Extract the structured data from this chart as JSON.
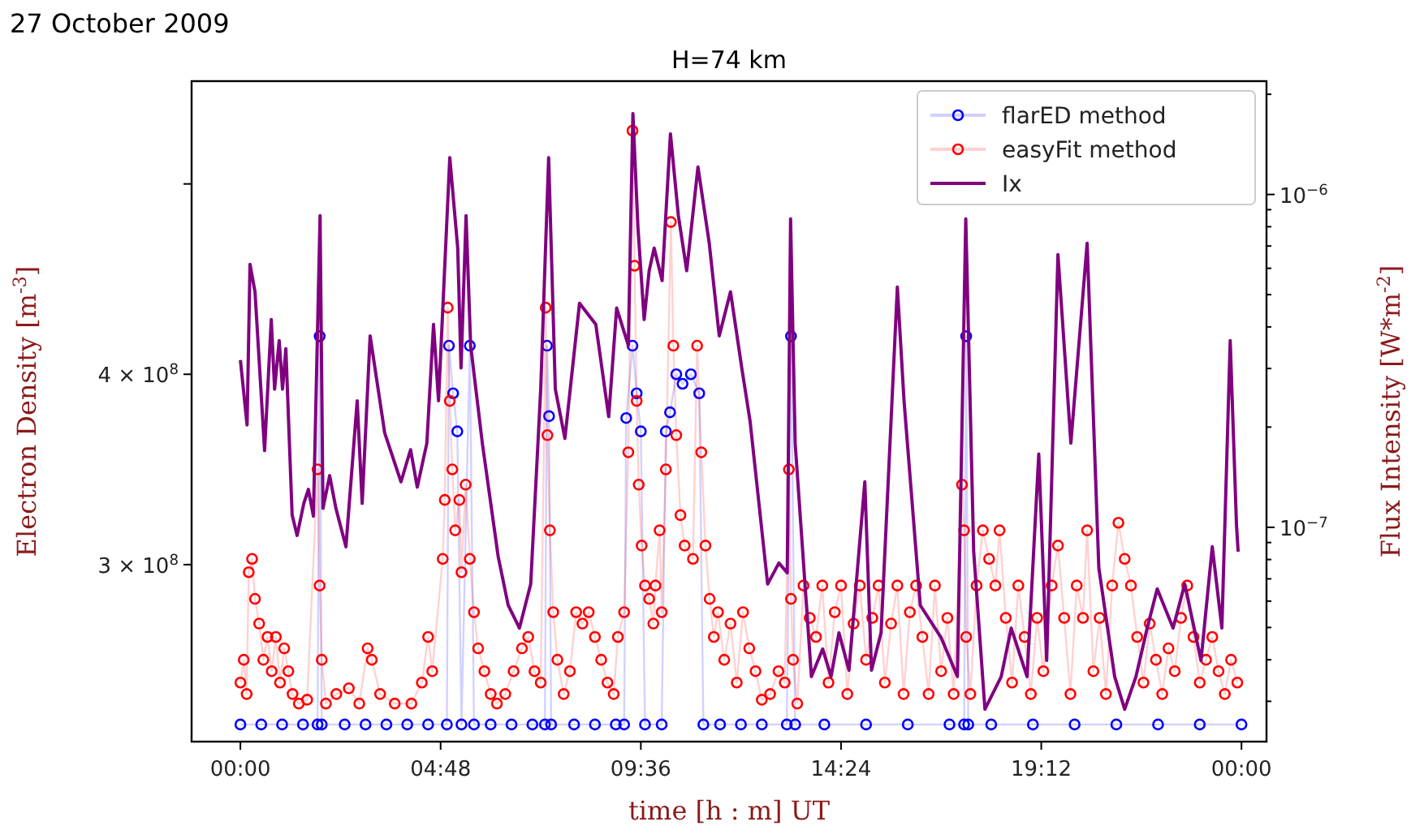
{
  "chart_data": {
    "type": "line",
    "title": "H=74 km",
    "subtitle": "27 October 2009",
    "xlabel": "time [h : m] UT",
    "ylabel": "Electron Density [m$^{-3}$]",
    "y2label": "Flux Intensity [W*m$^{-2}$]",
    "xlim": [
      -1.17,
      24.6
    ],
    "xticks": [
      {
        "value": 0,
        "label": "00:00"
      },
      {
        "value": 4.8,
        "label": "04:48"
      },
      {
        "value": 9.6,
        "label": "09:36"
      },
      {
        "value": 14.4,
        "label": "14:24"
      },
      {
        "value": 19.2,
        "label": "19:12"
      },
      {
        "value": 24,
        "label": "00:00"
      }
    ],
    "ylim": [
      207000000.0,
      554000000.0
    ],
    "yticks": [
      {
        "value": 300000000.0,
        "label": "3 × 10$^{8}$"
      },
      {
        "value": 400000000.0,
        "label": "4 × 10$^{8}$"
      },
      {
        "value": 500000000.0,
        "label": null
      }
    ],
    "y2lim": [
      2.27e-08,
      2.19e-06
    ],
    "y2ticks": [
      {
        "value": 3e-08,
        "label": null
      },
      {
        "value": 4e-08,
        "label": null
      },
      {
        "value": 5e-08,
        "label": null
      },
      {
        "value": 6e-08,
        "label": null
      },
      {
        "value": 7e-08,
        "label": null
      },
      {
        "value": 8e-08,
        "label": null
      },
      {
        "value": 9e-08,
        "label": null
      },
      {
        "value": 1e-07,
        "label": "10$^{−7}$"
      },
      {
        "value": 2e-07,
        "label": null
      },
      {
        "value": 3e-07,
        "label": null
      },
      {
        "value": 4e-07,
        "label": null
      },
      {
        "value": 5e-07,
        "label": null
      },
      {
        "value": 6e-07,
        "label": null
      },
      {
        "value": 7e-07,
        "label": null
      },
      {
        "value": 8e-07,
        "label": null
      },
      {
        "value": 9e-07,
        "label": null
      },
      {
        "value": 1e-06,
        "label": "10$^{−6}$"
      },
      {
        "value": 2e-06,
        "label": null
      }
    ],
    "log": "y2",
    "grid": false,
    "legend": "top right",
    "series": [
      {
        "name": "flarED method",
        "color": "#0000ff",
        "marker": "circle",
        "x": [
          0,
          0.5,
          1,
          1.5,
          1.85,
          1.9,
          1.95,
          2.5,
          3,
          3.5,
          4,
          4.5,
          4.95,
          5.0,
          5.1,
          5.2,
          5.3,
          5.5,
          5.6,
          6,
          6.5,
          7,
          7.3,
          7.35,
          7.4,
          7.45,
          8,
          8.5,
          9,
          9.2,
          9.25,
          9.4,
          9.5,
          9.6,
          9.7,
          10.1,
          10.2,
          10.3,
          10.45,
          10.6,
          10.8,
          11.0,
          11.1,
          11.5,
          12,
          12.5,
          13.1,
          13.2,
          13.3,
          14,
          15,
          16,
          17,
          17.35,
          17.4,
          17.45,
          18,
          19,
          20,
          21,
          22,
          23,
          24
        ],
        "values": [
          216000000.0,
          216000000.0,
          216000000.0,
          216000000.0,
          216000000.0,
          420000000.0,
          216000000.0,
          216000000.0,
          216000000.0,
          216000000.0,
          216000000.0,
          216000000.0,
          216000000.0,
          415000000.0,
          390000000.0,
          370000000.0,
          216000000.0,
          415000000.0,
          216000000.0,
          216000000.0,
          216000000.0,
          216000000.0,
          216000000.0,
          415000000.0,
          378000000.0,
          216000000.0,
          216000000.0,
          216000000.0,
          216000000.0,
          216000000.0,
          377000000.0,
          415000000.0,
          390000000.0,
          370000000.0,
          216000000.0,
          216000000.0,
          370000000.0,
          380000000.0,
          400000000.0,
          395000000.0,
          400000000.0,
          390000000.0,
          216000000.0,
          216000000.0,
          216000000.0,
          216000000.0,
          216000000.0,
          420000000.0,
          216000000.0,
          216000000.0,
          216000000.0,
          216000000.0,
          216000000.0,
          216000000.0,
          420000000.0,
          216000000.0,
          216000000.0,
          216000000.0,
          216000000.0,
          216000000.0,
          216000000.0,
          216000000.0,
          216000000.0
        ]
      },
      {
        "name": "easyFit method",
        "color": "#ff0000",
        "marker": "circle",
        "x": [
          0,
          0.08,
          0.15,
          0.2,
          0.28,
          0.35,
          0.45,
          0.55,
          0.65,
          0.75,
          0.85,
          0.95,
          1.05,
          1.15,
          1.25,
          1.4,
          1.6,
          1.85,
          1.9,
          1.95,
          2.05,
          2.3,
          2.6,
          2.85,
          3.05,
          3.15,
          3.35,
          3.7,
          4.1,
          4.35,
          4.5,
          4.6,
          4.85,
          4.9,
          4.97,
          5.02,
          5.08,
          5.15,
          5.25,
          5.3,
          5.4,
          5.5,
          5.6,
          5.7,
          5.85,
          6,
          6.15,
          6.35,
          6.55,
          6.75,
          6.9,
          7.05,
          7.2,
          7.32,
          7.36,
          7.42,
          7.5,
          7.6,
          7.75,
          7.9,
          8.05,
          8.2,
          8.35,
          8.5,
          8.65,
          8.8,
          8.95,
          9.05,
          9.2,
          9.3,
          9.4,
          9.45,
          9.5,
          9.55,
          9.62,
          9.7,
          9.8,
          9.9,
          9.95,
          10.05,
          10.1,
          10.2,
          10.32,
          10.38,
          10.45,
          10.55,
          10.65,
          10.85,
          10.95,
          11.05,
          11.15,
          11.25,
          11.35,
          11.45,
          11.6,
          11.75,
          11.9,
          12.05,
          12.2,
          12.35,
          12.5,
          12.7,
          12.9,
          13.05,
          13.15,
          13.2,
          13.25,
          13.35,
          13.5,
          13.65,
          13.8,
          13.95,
          14.1,
          14.25,
          14.4,
          14.55,
          14.7,
          14.85,
          15,
          15.15,
          15.3,
          15.45,
          15.6,
          15.75,
          15.9,
          16.05,
          16.2,
          16.35,
          16.5,
          16.65,
          16.8,
          16.95,
          17.1,
          17.3,
          17.35,
          17.4,
          17.5,
          17.65,
          17.8,
          17.95,
          18.1,
          18.2,
          18.35,
          18.5,
          18.65,
          18.8,
          18.95,
          19.1,
          19.25,
          19.45,
          19.6,
          19.75,
          19.9,
          20.05,
          20.2,
          20.3,
          20.45,
          20.6,
          20.75,
          20.9,
          21.05,
          21.2,
          21.35,
          21.5,
          21.65,
          21.8,
          21.95,
          22.1,
          22.25,
          22.4,
          22.55,
          22.7,
          22.85,
          23,
          23.15,
          23.3,
          23.45,
          23.6,
          23.75,
          23.9
        ],
        "values": [
          238000000.0,
          250000000.0,
          232000000.0,
          296000000.0,
          303000000.0,
          282000000.0,
          269000000.0,
          250000000.0,
          262000000.0,
          244000000.0,
          262000000.0,
          238000000.0,
          256000000.0,
          244000000.0,
          232000000.0,
          227000000.0,
          229000000.0,
          350000000.0,
          289000000.0,
          250000000.0,
          227000000.0,
          232000000.0,
          235000000.0,
          227000000.0,
          256000000.0,
          250000000.0,
          232000000.0,
          227000000.0,
          227000000.0,
          238000000.0,
          262000000.0,
          244000000.0,
          303000000.0,
          334000000.0,
          435000000.0,
          386000000.0,
          350000000.0,
          318000000.0,
          334000000.0,
          296000000.0,
          342000000.0,
          303000000.0,
          275000000.0,
          256000000.0,
          244000000.0,
          232000000.0,
          227000000.0,
          232000000.0,
          244000000.0,
          256000000.0,
          262000000.0,
          244000000.0,
          238000000.0,
          435000000.0,
          368000000.0,
          318000000.0,
          275000000.0,
          250000000.0,
          232000000.0,
          244000000.0,
          275000000.0,
          269000000.0,
          275000000.0,
          262000000.0,
          250000000.0,
          238000000.0,
          232000000.0,
          262000000.0,
          275000000.0,
          359000000.0,
          528000000.0,
          457000000.0,
          386000000.0,
          342000000.0,
          310000000.0,
          289000000.0,
          282000000.0,
          269000000.0,
          289000000.0,
          318000000.0,
          275000000.0,
          350000000.0,
          480000000.0,
          415000000.0,
          368000000.0,
          326000000.0,
          310000000.0,
          303000000.0,
          415000000.0,
          359000000.0,
          310000000.0,
          282000000.0,
          262000000.0,
          275000000.0,
          250000000.0,
          269000000.0,
          238000000.0,
          275000000.0,
          256000000.0,
          244000000.0,
          229000000.0,
          232000000.0,
          244000000.0,
          238000000.0,
          350000000.0,
          282000000.0,
          250000000.0,
          227000000.0,
          289000000.0,
          272000000.0,
          262000000.0,
          289000000.0,
          238000000.0,
          275000000.0,
          289000000.0,
          232000000.0,
          269000000.0,
          289000000.0,
          250000000.0,
          272000000.0,
          289000000.0,
          238000000.0,
          269000000.0,
          289000000.0,
          232000000.0,
          275000000.0,
          289000000.0,
          262000000.0,
          232000000.0,
          289000000.0,
          244000000.0,
          272000000.0,
          232000000.0,
          342000000.0,
          318000000.0,
          262000000.0,
          232000000.0,
          289000000.0,
          318000000.0,
          303000000.0,
          289000000.0,
          318000000.0,
          272000000.0,
          238000000.0,
          289000000.0,
          262000000.0,
          232000000.0,
          272000000.0,
          244000000.0,
          289000000.0,
          310000000.0,
          272000000.0,
          232000000.0,
          289000000.0,
          272000000.0,
          318000000.0,
          244000000.0,
          272000000.0,
          232000000.0,
          289000000.0,
          322000000.0,
          303000000.0,
          289000000.0,
          262000000.0,
          238000000.0,
          269000000.0,
          250000000.0,
          232000000.0,
          256000000.0,
          244000000.0,
          272000000.0,
          289000000.0,
          262000000.0,
          238000000.0,
          250000000.0,
          262000000.0,
          244000000.0,
          232000000.0,
          250000000.0,
          238000000.0
        ]
      },
      {
        "name": "Ix",
        "color": "#800080",
        "axis": "y2",
        "marker": "none",
        "x": [
          0,
          0.16,
          0.23,
          0.35,
          0.58,
          0.74,
          0.82,
          0.93,
          1.01,
          1.09,
          1.24,
          1.36,
          1.52,
          1.63,
          1.75,
          1.91,
          1.98,
          2.14,
          2.29,
          2.53,
          2.8,
          2.92,
          3.11,
          3.46,
          3.85,
          4.08,
          4.24,
          4.47,
          4.63,
          4.75,
          5.02,
          5.21,
          5.29,
          5.41,
          5.52,
          5.8,
          6.18,
          6.42,
          6.69,
          6.96,
          7.2,
          7.39,
          7.55,
          7.78,
          8.13,
          8.52,
          8.83,
          9.02,
          9.3,
          9.41,
          9.53,
          9.68,
          9.8,
          9.92,
          10.11,
          10.31,
          10.5,
          10.7,
          10.97,
          11.24,
          11.48,
          11.75,
          12.02,
          12.22,
          12.64,
          12.91,
          13.11,
          13.19,
          13.3,
          13.69,
          13.96,
          14.16,
          14.35,
          14.59,
          14.97,
          15.13,
          15.36,
          15.75,
          15.91,
          16.3,
          16.8,
          17.19,
          17.39,
          17.58,
          17.85,
          18.24,
          18.48,
          18.86,
          19.14,
          19.33,
          19.6,
          19.91,
          20.3,
          20.58,
          20.96,
          21.2,
          21.47,
          21.74,
          21.98,
          22.36,
          22.64,
          23.03,
          23.3,
          23.53,
          23.73,
          23.88,
          23.92
        ],
        "values": [
          3.18e-07,
          2.03e-07,
          6.17e-07,
          5.1e-07,
          1.7e-07,
          4.21e-07,
          2.6e-07,
          3.64e-07,
          2.6e-07,
          3.44e-07,
          1.09e-07,
          9.45e-08,
          1.18e-07,
          1.3e-07,
          1.08e-07,
          8.64e-07,
          1.14e-07,
          1.43e-07,
          1.14e-07,
          8.74e-08,
          2.4e-07,
          1.18e-07,
          3.76e-07,
          1.92e-07,
          1.37e-07,
          1.71e-07,
          1.32e-07,
          1.79e-07,
          4.07e-07,
          2.4e-07,
          1.29e-06,
          6.9e-07,
          3.01e-07,
          8.64e-07,
          3.52e-07,
          1.79e-07,
          8.17e-08,
          5.83e-08,
          4.98e-08,
          6.75e-08,
          2.6e-07,
          1.29e-06,
          2.6e-07,
          1.85e-07,
          4.71e-07,
          4.07e-07,
          2.15e-07,
          4.56e-07,
          3.52e-07,
          1.75e-06,
          7.99e-07,
          4.21e-07,
          5.9e-07,
          6.9e-07,
          5.51e-07,
          1.52e-06,
          8.64e-07,
          5.9e-07,
          1.21e-06,
          7.14e-07,
          3.76e-07,
          5.1e-07,
          3.01e-07,
          2.08e-07,
          6.75e-08,
          7.81e-08,
          7.3e-08,
          8.45e-07,
          1.79e-07,
          3.56e-08,
          4.31e-08,
          3.56e-08,
          4.82e-08,
          3.72e-08,
          1.37e-07,
          3.72e-08,
          4.82e-08,
          5.27e-07,
          2.4e-07,
          5.83e-08,
          4.66e-08,
          3.56e-08,
          8.45e-07,
          8.45e-08,
          2.84e-08,
          3.56e-08,
          4.98e-08,
          3.56e-08,
          1.66e-07,
          3.98e-08,
          6.6e-07,
          1.79e-07,
          7.14e-07,
          7.55e-08,
          3.56e-08,
          2.84e-08,
          3.56e-08,
          4.98e-08,
          6.53e-08,
          4.98e-08,
          6.75e-08,
          3.98e-08,
          8.74e-08,
          4.98e-08,
          3.64e-07,
          1.02e-07,
          8.45e-08
        ]
      }
    ]
  }
}
